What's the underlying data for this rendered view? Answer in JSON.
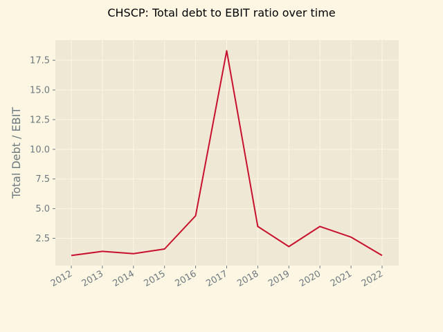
{
  "chart_data": {
    "type": "line",
    "title": "CHSCP: Total debt to EBIT ratio over time",
    "xlabel": "",
    "ylabel": "Total Debt / EBIT",
    "categories": [
      "2012",
      "2013",
      "2014",
      "2015",
      "2016",
      "2017",
      "2018",
      "2019",
      "2020",
      "2021",
      "2022"
    ],
    "series": [
      {
        "values": [
          1.05,
          1.4,
          1.2,
          1.6,
          4.4,
          18.3,
          3.5,
          1.8,
          3.5,
          2.6,
          1.05
        ]
      }
    ],
    "yticks": [
      "2.5",
      "5.0",
      "7.5",
      "10.0",
      "12.5",
      "15.0",
      "17.5"
    ],
    "ylim": [
      0.2,
      19.2
    ],
    "grid": true,
    "colors": {
      "line": "#c8102e",
      "plot_bg": "#eee8d5",
      "figure_bg": "#fdf6e3",
      "grid": "#fdf6e3",
      "tick_text": "#6c7a80"
    }
  }
}
